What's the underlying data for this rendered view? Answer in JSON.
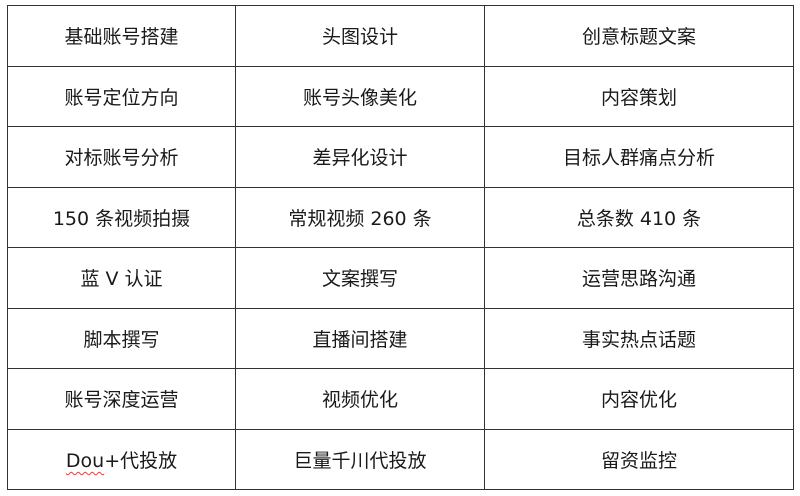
{
  "table": {
    "rows": [
      [
        "基础账号搭建",
        "头图设计",
        "创意标题文案"
      ],
      [
        "账号定位方向",
        "账号头像美化",
        "内容策划"
      ],
      [
        "对标账号分析",
        "差异化设计",
        "目标人群痛点分析"
      ],
      [
        "150 条视频拍摄",
        "常规视频 260 条",
        "总条数 410 条"
      ],
      [
        "蓝 V 认证",
        "文案撰写",
        "运营思路沟通"
      ],
      [
        "脚本撰写",
        "直播间搭建",
        "事实热点话题"
      ],
      [
        "账号深度运营",
        "视频优化",
        "内容优化"
      ],
      [
        "Dou+代投放",
        "巨量千川代投放",
        "留资监控"
      ]
    ],
    "last_row_first": {
      "spellcheck_word": "Dou",
      "rest": "+代投放"
    }
  }
}
